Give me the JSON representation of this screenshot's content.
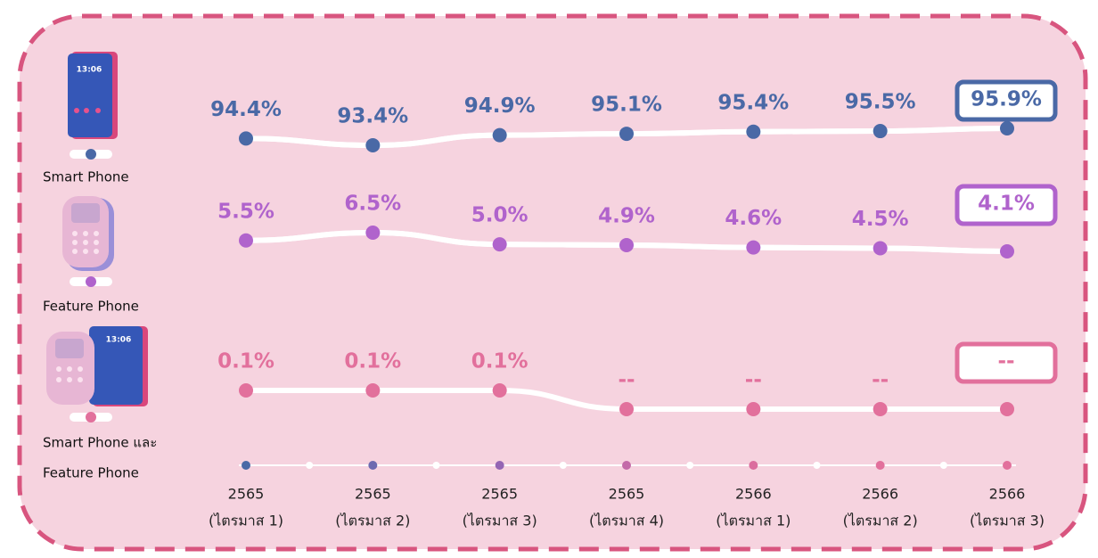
{
  "chart_data": {
    "type": "line",
    "categories": [
      [
        "2565",
        "(ไตรมาส 1)"
      ],
      [
        "2565",
        "(ไตรมาส 2)"
      ],
      [
        "2565",
        "(ไตรมาส 3)"
      ],
      [
        "2565",
        "(ไตรมาส 4)"
      ],
      [
        "2566",
        "(ไตรมาส 1)"
      ],
      [
        "2566",
        "(ไตรมาส 2)"
      ],
      [
        "2566",
        "(ไตรมาส 3)"
      ]
    ],
    "series": [
      {
        "name": [
          "Smart Phone"
        ],
        "color": "#4a69a6",
        "values": [
          94.4,
          93.4,
          94.9,
          95.1,
          95.4,
          95.5,
          95.9
        ],
        "value_labels": [
          "94.4%",
          "93.4%",
          "94.9%",
          "95.1%",
          "95.4%",
          "95.5%",
          "95.9%"
        ]
      },
      {
        "name": [
          "Feature Phone"
        ],
        "color": "#b063cc",
        "values": [
          5.5,
          6.5,
          5.0,
          4.9,
          4.6,
          4.5,
          4.1
        ],
        "value_labels": [
          "5.5%",
          "6.5%",
          "5.0%",
          "4.9%",
          "4.6%",
          "4.5%",
          "4.1%"
        ]
      },
      {
        "name": [
          "Smart Phone และ",
          "Feature Phone"
        ],
        "color": "#e2709c",
        "values": [
          0.1,
          0.1,
          0.1,
          null,
          null,
          null,
          null
        ],
        "value_labels": [
          "0.1%",
          "0.1%",
          "0.1%",
          "--",
          "--",
          "--",
          "--"
        ]
      }
    ]
  }
}
